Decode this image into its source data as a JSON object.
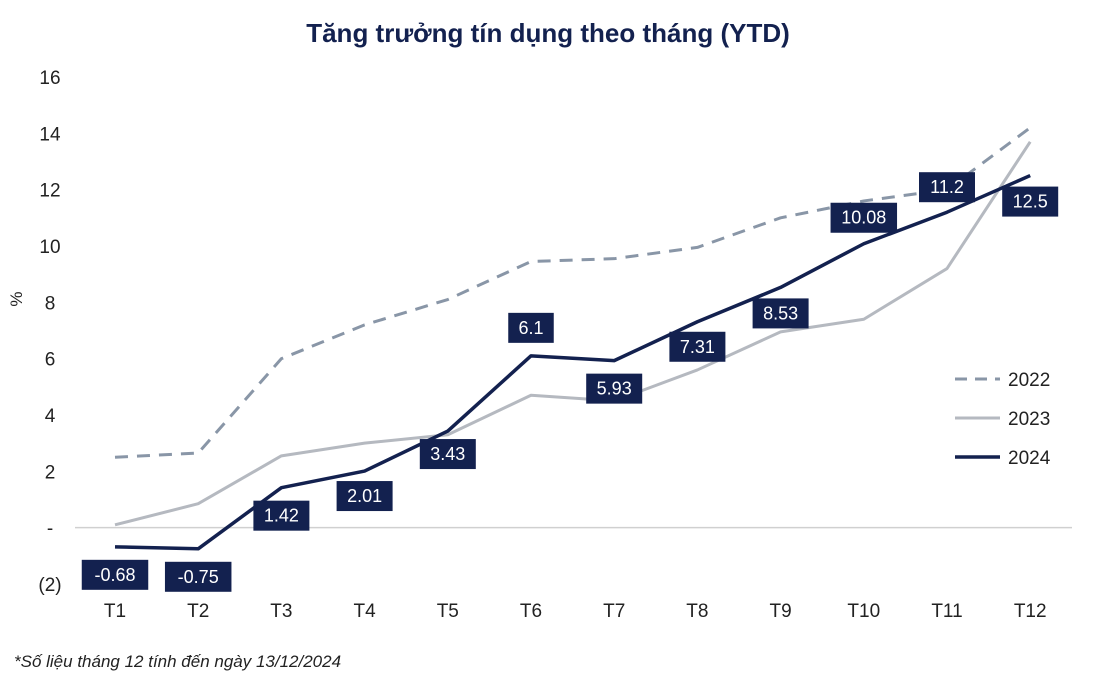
{
  "chart_data": {
    "type": "line",
    "title": "Tăng trưởng tín dụng theo tháng (YTD)",
    "ylabel": "%",
    "categories": [
      "T1",
      "T2",
      "T3",
      "T4",
      "T5",
      "T6",
      "T7",
      "T8",
      "T9",
      "T10",
      "T11",
      "T12"
    ],
    "ylim": [
      -2,
      16
    ],
    "yticks": [
      {
        "value": 16,
        "label": "16"
      },
      {
        "value": 14,
        "label": "14"
      },
      {
        "value": 12,
        "label": "12"
      },
      {
        "value": 10,
        "label": "10"
      },
      {
        "value": 8,
        "label": "8"
      },
      {
        "value": 6,
        "label": "6"
      },
      {
        "value": 4,
        "label": "4"
      },
      {
        "value": 2,
        "label": "2"
      },
      {
        "value": 0,
        "label": "-"
      },
      {
        "value": -2,
        "label": "(2)"
      }
    ],
    "series": [
      {
        "name": "2022",
        "color": "#8996a7",
        "style": "dashed",
        "values": [
          2.5,
          2.65,
          6.0,
          7.2,
          8.1,
          9.45,
          9.55,
          9.95,
          11.0,
          11.6,
          12.0,
          14.2
        ]
      },
      {
        "name": "2023",
        "color": "#b5b9c0",
        "style": "solid",
        "values": [
          0.1,
          0.85,
          2.55,
          3.0,
          3.3,
          4.7,
          4.5,
          5.6,
          6.95,
          7.4,
          9.2,
          13.7
        ]
      },
      {
        "name": "2024",
        "color": "#13214f",
        "style": "solid",
        "values": [
          -0.68,
          -0.75,
          1.42,
          2.01,
          3.43,
          6.1,
          5.93,
          7.31,
          8.53,
          10.08,
          11.2,
          12.5
        ],
        "data_labels": [
          "-0.68",
          "-0.75",
          "1.42",
          "2.01",
          "3.43",
          "6.1",
          "5.93",
          "7.31",
          "8.53",
          "10.08",
          "11.2",
          "12.5"
        ]
      }
    ],
    "legend_position": "right",
    "grid": false
  },
  "footnote": "*Số liệu tháng 12 tính đến ngày 13/12/2024"
}
